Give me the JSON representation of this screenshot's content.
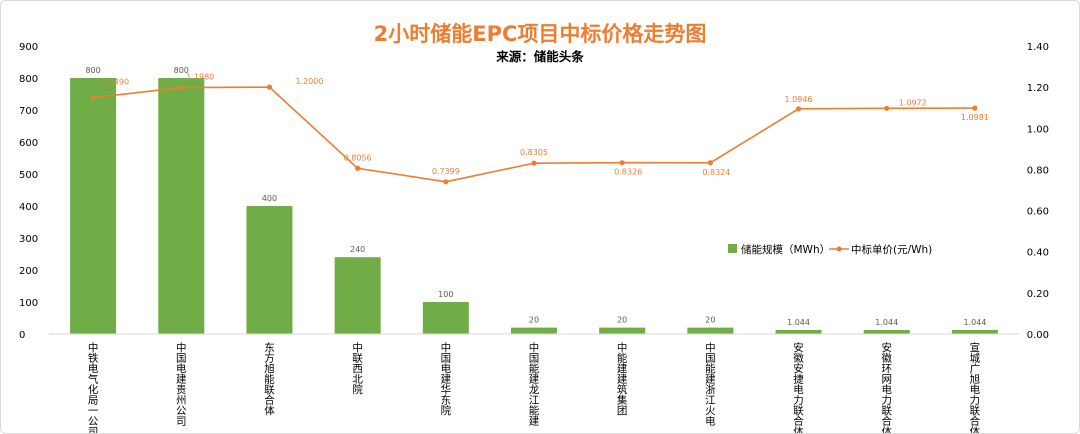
{
  "chart_data": {
    "type": "bar+line",
    "title": "2小时储能EPC项目中标价格走势图",
    "subtitle": "来源：储能头条",
    "categories": [
      "中铁电气化局一公司",
      "中国电建贵州公司",
      "东方旭能联合体",
      "中联西北院",
      "中国电建华东院",
      "中国能建龙江能建",
      "中能建建筑集团",
      "中国能建浙江火电",
      "安徽安捷电力联合体",
      "安徽环网电力联合体",
      "宣城广旭电力联合体"
    ],
    "series": [
      {
        "name": "储能规模（MWh）",
        "type": "bar",
        "axis": "left",
        "values": [
          800,
          800,
          400,
          240,
          100,
          20,
          20,
          20,
          1.044,
          1.044,
          1.044
        ],
        "labels": [
          "800",
          "800",
          "400",
          "240",
          "100",
          "20",
          "20",
          "20",
          "1.044",
          "1.044",
          "1.044"
        ]
      },
      {
        "name": "中标单价(元/Wh)",
        "type": "line",
        "axis": "right",
        "values": [
          1.149,
          1.198,
          1.2,
          0.8056,
          0.7399,
          0.8305,
          0.8326,
          0.8324,
          1.0946,
          1.0972,
          1.0981
        ],
        "labels": [
          "1.1490",
          "1.1980",
          "1.2000",
          "0.8056",
          "0.7399",
          "0.8305",
          "0.8326",
          "0.8324",
          "1.0946",
          "1.0972",
          "1.0981"
        ]
      }
    ],
    "y_left": {
      "ylim": [
        0,
        900
      ],
      "ticks": [
        "0",
        "100",
        "200",
        "300",
        "400",
        "500",
        "600",
        "700",
        "800",
        "900"
      ]
    },
    "y_right": {
      "ylim": [
        0,
        1.4
      ],
      "ticks": [
        "0.00",
        "0.20",
        "0.40",
        "0.60",
        "0.80",
        "1.00",
        "1.20",
        "1.40"
      ]
    },
    "grid": false,
    "legend_position": "right-middle"
  },
  "colors": {
    "bar": "#70ad47",
    "line": "#ed7d31",
    "title": "#ed7d31",
    "text": "#000000",
    "label": "#595959"
  }
}
